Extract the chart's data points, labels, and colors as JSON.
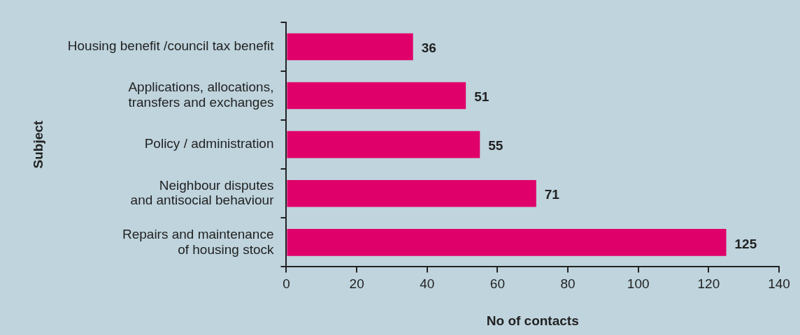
{
  "chart_data": {
    "type": "bar",
    "orientation": "horizontal",
    "xlabel": "No of contacts",
    "ylabel": "Subject",
    "categories": [
      "Housing benefit /council tax benefit",
      "Applications, allocations,\ntransfers and exchanges",
      "Policy / administration",
      "Neighbour disputes\nand antisocial behaviour",
      "Repairs and maintenance\nof housing stock"
    ],
    "values": [
      36,
      51,
      55,
      71,
      125
    ],
    "color": "#e0006a",
    "xlim": [
      0,
      140
    ],
    "xticks": [
      0,
      20,
      40,
      60,
      80,
      100,
      120,
      140
    ],
    "grid": false,
    "legend": false,
    "data_labels": true
  }
}
